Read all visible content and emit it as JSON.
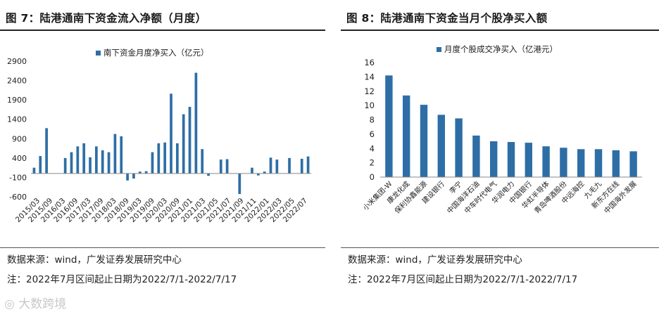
{
  "figure1": {
    "title": "图 7：陆港通南下资金流入净额（月度）",
    "source": "数据来源：wind，广发证券发展研究中心",
    "note": "注：2022年7月区间起止日期为2022/7/1-2022/7/17"
  },
  "figure2": {
    "title": "图 8：陆港通南下资金当月个股净买入额",
    "source": "数据来源：wind，广发证券发展研究中心",
    "note": "注：2022年7月区间起止日期为2022/7/1-2022/7/17"
  },
  "watermark": "大数跨境",
  "chart_data": [
    {
      "type": "bar",
      "series": [
        {
          "name": "南下资金月度净买入（亿元）",
          "color": "#2e6ea6",
          "values": [
            150,
            450,
            1170,
            0,
            0,
            400,
            550,
            700,
            780,
            420,
            700,
            600,
            550,
            1020,
            960,
            -180,
            -130,
            50,
            60,
            550,
            780,
            800,
            2060,
            780,
            1530,
            1720,
            2600,
            630,
            -60,
            0,
            360,
            370,
            0,
            -530,
            0,
            150,
            -50,
            50,
            410,
            360,
            0,
            400,
            0,
            380,
            440
          ]
        }
      ],
      "x_tick_labels": [
        "2015/03",
        "2015/09",
        "2016/03",
        "2016/09",
        "2017/03",
        "2017/09",
        "2018/03",
        "2018/09",
        "2019/03",
        "2019/09",
        "2020/03",
        "2020/09",
        "2021/01",
        "2021/03",
        "2021/05",
        "2021/07",
        "2021/09",
        "2021/11",
        "2022/01",
        "2022/03",
        "2022/05",
        "2022/07"
      ],
      "y_ticks": [
        -600,
        -100,
        400,
        900,
        1400,
        1900,
        2400,
        2900
      ],
      "ylim": [
        -600,
        2900
      ],
      "legend": "top-center",
      "grid": false
    },
    {
      "type": "bar",
      "categories": [
        "小米集团-W",
        "康龙化成",
        "保利协鑫能源",
        "建设银行",
        "李宁",
        "中国海洋石油",
        "中车时代电气",
        "华润电力",
        "中国银行",
        "华虹半导体",
        "青岛啤酒股份",
        "中远海控",
        "九毛九",
        "新东方在线",
        "中国海外发展"
      ],
      "series": [
        {
          "name": "月度个股成交净买入（亿港元）",
          "color": "#2e6ea6",
          "values": [
            14.2,
            11.4,
            10.1,
            8.7,
            8.2,
            5.8,
            5.0,
            4.9,
            4.8,
            4.3,
            4.1,
            3.9,
            3.9,
            3.75,
            3.6
          ]
        }
      ],
      "y_ticks": [
        0,
        2,
        4,
        6,
        8,
        10,
        12,
        14,
        16
      ],
      "ylim": [
        0,
        16
      ],
      "legend": "top-center",
      "grid": false
    }
  ]
}
